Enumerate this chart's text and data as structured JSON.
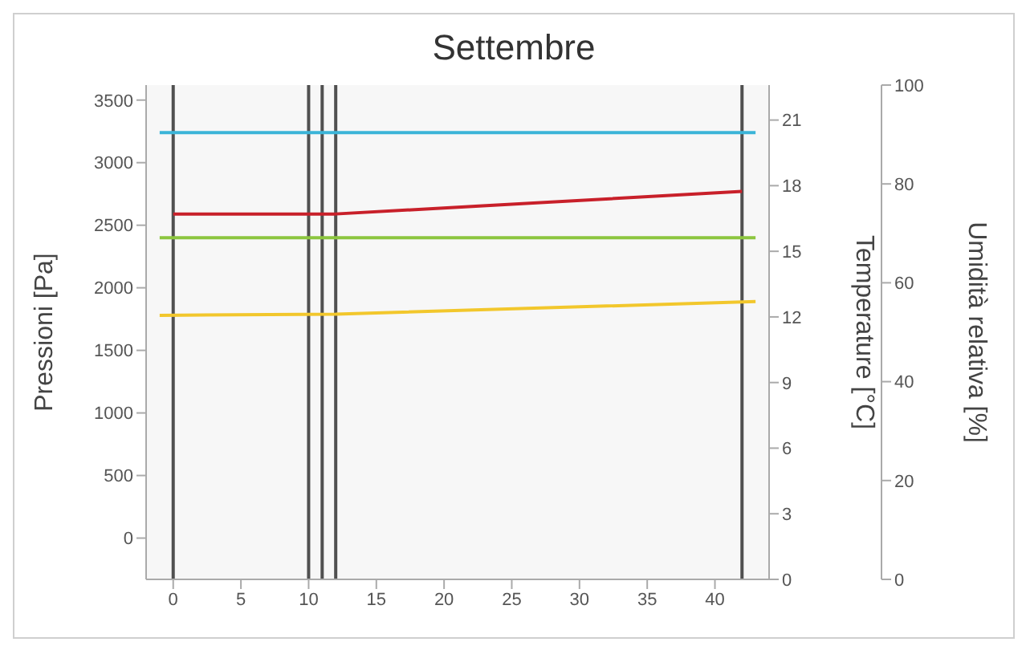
{
  "chart_data": {
    "type": "line",
    "title": "Settembre",
    "ylabel": "Pressioni [Pa]",
    "y2label": "Temperature [°C]",
    "y3label": "Umidità relativa [%]",
    "xlim": [
      -2,
      44
    ],
    "xticks": [
      0,
      5,
      10,
      15,
      20,
      25,
      30,
      35,
      40
    ],
    "ylim": [
      -330,
      3620
    ],
    "yticks": [
      0,
      500,
      1000,
      1500,
      2000,
      2500,
      3000,
      3500
    ],
    "y2lim": [
      0,
      22.6
    ],
    "y2ticks": [
      0,
      3,
      6,
      9,
      12,
      15,
      18,
      21
    ],
    "y3lim": [
      0,
      100
    ],
    "y3ticks": [
      0,
      20,
      40,
      60,
      80,
      100
    ],
    "marker": "none",
    "line_style": "solid",
    "series": [
      {
        "color": "#3bb4d8",
        "x": [
          -1,
          43
        ],
        "values": [
          3240,
          3240
        ]
      },
      {
        "color": "#c8202a",
        "x": [
          0,
          12,
          42
        ],
        "values": [
          2590,
          2590,
          2770
        ]
      },
      {
        "color": "#8cc63f",
        "x": [
          -1,
          43
        ],
        "values": [
          2400,
          2400
        ]
      },
      {
        "color": "#f2c72c",
        "x": [
          -1,
          12,
          43
        ],
        "values": [
          1780,
          1790,
          1890
        ]
      }
    ],
    "ref_lines": [
      {
        "axis": "x",
        "value": 0,
        "color": "#505050"
      },
      {
        "axis": "x",
        "value": 10,
        "color": "#505050"
      },
      {
        "axis": "x",
        "value": 11,
        "color": "#505050"
      },
      {
        "axis": "x",
        "value": 12,
        "color": "#505050"
      },
      {
        "axis": "x",
        "value": 42,
        "color": "#505050"
      }
    ]
  }
}
